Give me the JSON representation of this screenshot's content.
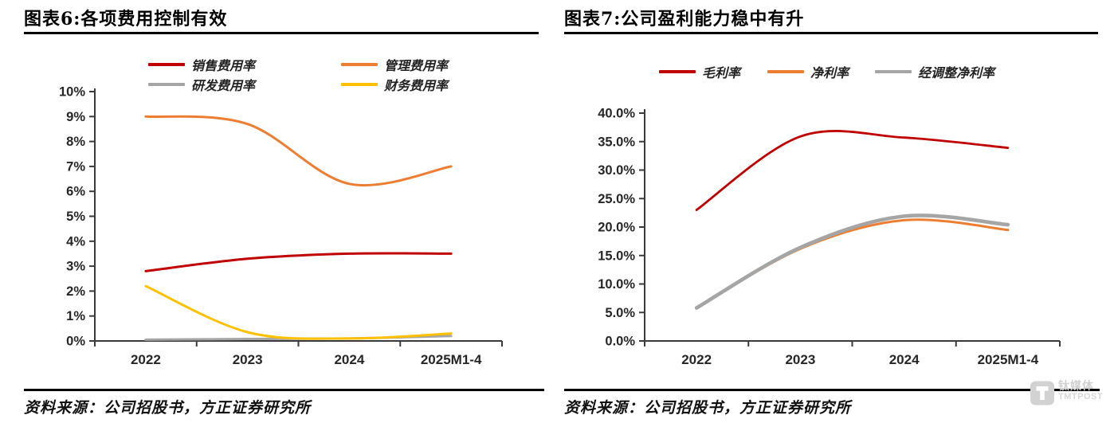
{
  "panels": [
    {
      "title": "图表6:各项费用控制有效",
      "source": "资料来源：公司招股书，方正证券研究所"
    },
    {
      "title": "图表7:公司盈利能力稳中有升",
      "source": "资料来源：公司招股书，方正证券研究所"
    }
  ],
  "watermark": {
    "name_cn": "钛媒体",
    "name_en": "TMTPOST"
  },
  "axis_color": "#3a3a3a",
  "tick_label_color": "#262626",
  "chart_data": [
    {
      "type": "line",
      "title": "图表6:各项费用控制有效",
      "categories": [
        "2022",
        "2023",
        "2024",
        "2025M1-4"
      ],
      "series": [
        {
          "name": "销售费用率",
          "color": "#c00000",
          "values": [
            2.8,
            3.3,
            3.5,
            3.5
          ]
        },
        {
          "name": "管理费用率",
          "color": "#ed7d31",
          "values": [
            9.0,
            8.7,
            6.3,
            7.0
          ]
        },
        {
          "name": "研发费用率",
          "color": "#a5a5a5",
          "values": [
            0.05,
            0.08,
            0.1,
            0.2
          ]
        },
        {
          "name": "财务费用率",
          "color": "#ffc000",
          "values": [
            2.2,
            0.35,
            0.1,
            0.3
          ]
        }
      ],
      "ylim": [
        0,
        10
      ],
      "ytick_labels": [
        "0%",
        "1%",
        "2%",
        "3%",
        "4%",
        "5%",
        "6%",
        "7%",
        "8%",
        "9%",
        "10%"
      ],
      "xlabel": "",
      "ylabel": "",
      "grid": false,
      "smooth": true,
      "legend_position": "top"
    },
    {
      "type": "line",
      "title": "图表7:公司盈利能力稳中有升",
      "categories": [
        "2022",
        "2023",
        "2024",
        "2025M1-4"
      ],
      "series": [
        {
          "name": "毛利率",
          "color": "#c00000",
          "values": [
            23.0,
            35.9,
            35.7,
            33.9
          ]
        },
        {
          "name": "净利率",
          "color": "#ed7d31",
          "values": [
            5.7,
            16.2,
            21.2,
            19.5
          ]
        },
        {
          "name": "经调整净利率",
          "color": "#a5a5a5",
          "values": [
            5.8,
            16.4,
            21.9,
            20.4
          ]
        }
      ],
      "ylim": [
        0,
        40
      ],
      "ytick_labels": [
        "0.0%",
        "5.0%",
        "10.0%",
        "15.0%",
        "20.0%",
        "25.0%",
        "30.0%",
        "35.0%",
        "40.0%"
      ],
      "xlabel": "",
      "ylabel": "",
      "grid": false,
      "smooth": true,
      "legend_position": "top"
    }
  ]
}
